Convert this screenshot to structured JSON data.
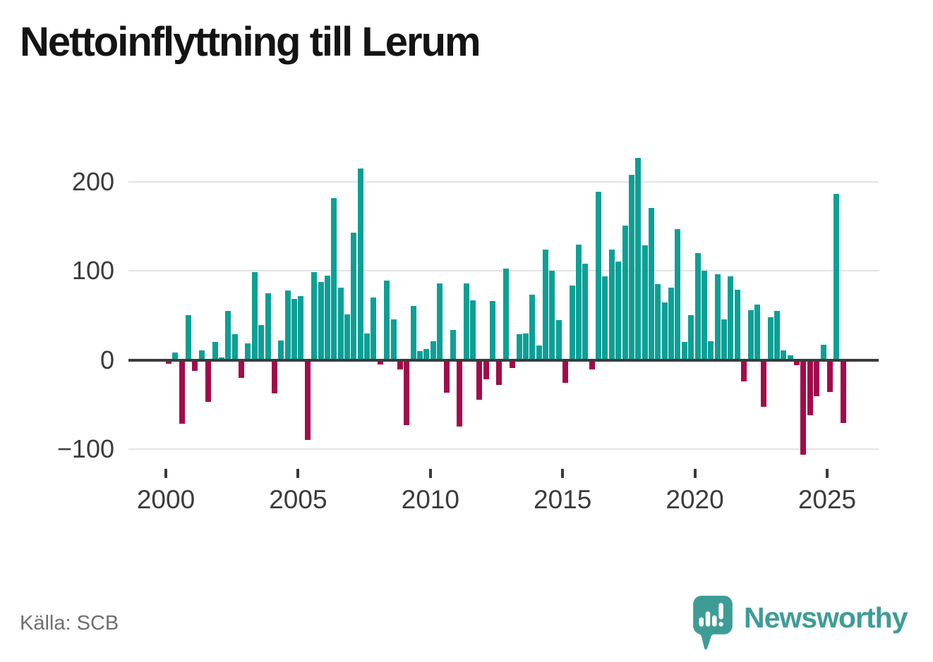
{
  "title": "Nettoinflyttning till Lerum",
  "source": "Källa: SCB",
  "logo": {
    "text": "Newsworthy",
    "color": "#3e9c96"
  },
  "chart_data": {
    "type": "bar",
    "title": "Nettoinflyttning till Lerum",
    "period": "quarterly",
    "grid": "horizontal",
    "legend": "none",
    "ylim": [
      -120,
      245
    ],
    "y_ticks": [
      {
        "label": "200",
        "value": 200
      },
      {
        "label": "100",
        "value": 100
      },
      {
        "label": "0",
        "value": 0
      },
      {
        "label": "−100",
        "value": -100
      }
    ],
    "x_ticks": [
      {
        "label": "2000",
        "quarter_index": 0
      },
      {
        "label": "2005",
        "quarter_index": 20
      },
      {
        "label": "2010",
        "quarter_index": 40
      },
      {
        "label": "2015",
        "quarter_index": 60
      },
      {
        "label": "2020",
        "quarter_index": 80
      },
      {
        "label": "2025",
        "quarter_index": 100
      }
    ],
    "years": [
      {
        "year": 2000,
        "values": [
          -4,
          8,
          -72,
          50
        ]
      },
      {
        "year": 2001,
        "values": [
          -12,
          11,
          -47,
          20
        ]
      },
      {
        "year": 2002,
        "values": [
          3,
          55,
          29,
          -20
        ]
      },
      {
        "year": 2003,
        "values": [
          19,
          99,
          39,
          75
        ]
      },
      {
        "year": 2004,
        "values": [
          -38,
          22,
          78,
          69
        ]
      },
      {
        "year": 2005,
        "values": [
          72,
          -90,
          99,
          88
        ]
      },
      {
        "year": 2006,
        "values": [
          95,
          182,
          81,
          51
        ]
      },
      {
        "year": 2007,
        "values": [
          143,
          215,
          30,
          70
        ]
      },
      {
        "year": 2008,
        "values": [
          -5,
          89,
          46,
          -11
        ]
      },
      {
        "year": 2009,
        "values": [
          -73,
          61,
          10,
          12
        ]
      },
      {
        "year": 2010,
        "values": [
          21,
          86,
          -37,
          34
        ]
      },
      {
        "year": 2011,
        "values": [
          -75,
          86,
          67,
          -45
        ]
      },
      {
        "year": 2012,
        "values": [
          -22,
          66,
          -28,
          103
        ]
      },
      {
        "year": 2013,
        "values": [
          -9,
          29,
          30,
          73
        ]
      },
      {
        "year": 2014,
        "values": [
          16,
          124,
          100,
          45
        ]
      },
      {
        "year": 2015,
        "values": [
          -26,
          84,
          130,
          108
        ]
      },
      {
        "year": 2016,
        "values": [
          -11,
          189,
          94,
          124
        ]
      },
      {
        "year": 2017,
        "values": [
          111,
          151,
          208,
          227
        ]
      },
      {
        "year": 2018,
        "values": [
          129,
          171,
          85,
          65
        ]
      },
      {
        "year": 2019,
        "values": [
          81,
          147,
          20,
          50
        ]
      },
      {
        "year": 2020,
        "values": [
          120,
          100,
          21,
          96
        ]
      },
      {
        "year": 2021,
        "values": [
          46,
          94,
          79,
          -24
        ]
      },
      {
        "year": 2022,
        "values": [
          56,
          62,
          -53,
          48
        ]
      },
      {
        "year": 2023,
        "values": [
          55,
          11,
          5,
          -6
        ]
      },
      {
        "year": 2024,
        "values": [
          -107,
          -62,
          -41,
          17
        ]
      },
      {
        "year": 2025,
        "values": [
          -36,
          187,
          -71
        ]
      }
    ],
    "colors": {
      "positive": "#0ba096",
      "negative": "#a30a49",
      "axis": "#3b3b3b",
      "grid": "#e3e3e3"
    }
  }
}
